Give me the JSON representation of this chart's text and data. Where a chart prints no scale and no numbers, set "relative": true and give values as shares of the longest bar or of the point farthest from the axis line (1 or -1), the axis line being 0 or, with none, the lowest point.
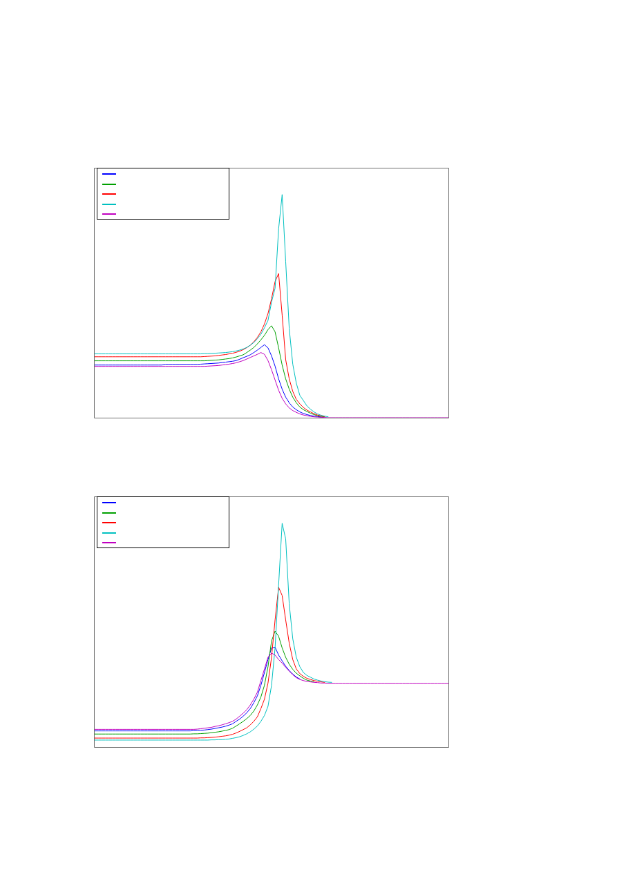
{
  "chart_data": [
    {
      "type": "line",
      "relative": true,
      "tick_labels": false,
      "categories": [
        null,
        null,
        null,
        null,
        null,
        null,
        null,
        null,
        null,
        null,
        null,
        null,
        null,
        null,
        null,
        null,
        null,
        null,
        null,
        null,
        null,
        null,
        null,
        null,
        null,
        null,
        null,
        null,
        null,
        null,
        null,
        null,
        null,
        null,
        null,
        null,
        null,
        null,
        null,
        null,
        null,
        null,
        null,
        null,
        null,
        null,
        null,
        null,
        null,
        null,
        null,
        null,
        null,
        null,
        null,
        null,
        null,
        null,
        null,
        null,
        null,
        null,
        null,
        null,
        null,
        null,
        null,
        null,
        null,
        null,
        null,
        null,
        null,
        null,
        null,
        null,
        null,
        null,
        null,
        null,
        null,
        null,
        null,
        null,
        null,
        null,
        null,
        null,
        null,
        null,
        null,
        null,
        null,
        null,
        null,
        null,
        null,
        null,
        null,
        null,
        null
      ],
      "series": [
        {
          "color": "#0000ff",
          "values": [
            0.236,
            0.236,
            0.236,
            0.236,
            0.236,
            0.236,
            0.236,
            0.236,
            0.236,
            0.236,
            0.236,
            0.236,
            0.236,
            0.236,
            0.236,
            0.236,
            0.236,
            0.236,
            0.236,
            0.236,
            0.239,
            0.239,
            0.239,
            0.239,
            0.239,
            0.239,
            0.239,
            0.239,
            0.239,
            0.239,
            0.24,
            0.241,
            0.242,
            0.243,
            0.244,
            0.245,
            0.247,
            0.249,
            0.251,
            0.253,
            0.256,
            0.262,
            0.269,
            0.275,
            0.282,
            0.292,
            0.303,
            0.315,
            0.327,
            0.313,
            0.277,
            0.231,
            0.174,
            0.128,
            0.092,
            0.067,
            0.048,
            0.036,
            0.026,
            0.019,
            0.014,
            0.01,
            0.007,
            0.005,
            0.003,
            null,
            null,
            null,
            null,
            null,
            null,
            null,
            null,
            null,
            null,
            null,
            null,
            null,
            null,
            null,
            null,
            null,
            null,
            null,
            null,
            null,
            null,
            null,
            null,
            null,
            null,
            null,
            null,
            null,
            null,
            null,
            null,
            null,
            null,
            null,
            null
          ]
        },
        {
          "color": "#00a000",
          "values": [
            0.255,
            0.255,
            0.255,
            0.255,
            0.255,
            0.255,
            0.255,
            0.255,
            0.255,
            0.255,
            0.255,
            0.255,
            0.255,
            0.255,
            0.255,
            0.255,
            0.255,
            0.255,
            0.255,
            0.255,
            0.255,
            0.255,
            0.255,
            0.255,
            0.255,
            0.255,
            0.255,
            0.255,
            0.255,
            0.255,
            0.255,
            0.255,
            0.256,
            0.257,
            0.258,
            0.259,
            0.261,
            0.263,
            0.265,
            0.268,
            0.272,
            0.277,
            0.282,
            0.292,
            0.303,
            0.315,
            0.331,
            0.349,
            0.369,
            0.395,
            0.412,
            0.385,
            0.313,
            0.236,
            0.174,
            0.128,
            0.092,
            0.067,
            0.048,
            0.036,
            0.028,
            0.02,
            0.014,
            0.009,
            0.006,
            0.004,
            null,
            null,
            null,
            null,
            null,
            null,
            null,
            null,
            null,
            null,
            null,
            null,
            null,
            null,
            null,
            null,
            null,
            null,
            null,
            null,
            null,
            null,
            null,
            null,
            null,
            null,
            null,
            null,
            null,
            null,
            null,
            null,
            null,
            null,
            null
          ]
        },
        {
          "color": "#ff0000",
          "values": [
            0.273,
            0.273,
            0.273,
            0.273,
            0.273,
            0.273,
            0.273,
            0.273,
            0.273,
            0.273,
            0.273,
            0.273,
            0.273,
            0.273,
            0.273,
            0.273,
            0.273,
            0.273,
            0.273,
            0.273,
            0.273,
            0.273,
            0.273,
            0.273,
            0.273,
            0.273,
            0.273,
            0.273,
            0.273,
            0.273,
            0.273,
            0.274,
            0.275,
            0.276,
            0.277,
            0.279,
            0.281,
            0.283,
            0.286,
            0.289,
            0.293,
            0.298,
            0.305,
            0.314,
            0.325,
            0.34,
            0.36,
            0.385,
            0.42,
            0.467,
            0.533,
            0.61,
            0.646,
            0.46,
            0.26,
            0.174,
            0.118,
            0.082,
            0.062,
            0.046,
            0.034,
            0.026,
            0.018,
            0.012,
            0.008,
            0.005,
            null,
            null,
            null,
            null,
            null,
            null,
            null,
            null,
            null,
            null,
            null,
            null,
            null,
            null,
            null,
            null,
            null,
            null,
            null,
            null,
            null,
            null,
            null,
            null,
            null,
            null,
            null,
            null,
            null,
            null,
            null,
            null,
            null,
            null,
            null
          ]
        },
        {
          "color": "#00c0c0",
          "values": [
            0.286,
            0.286,
            0.286,
            0.286,
            0.286,
            0.286,
            0.286,
            0.286,
            0.286,
            0.286,
            0.286,
            0.286,
            0.286,
            0.286,
            0.286,
            0.286,
            0.286,
            0.286,
            0.286,
            0.286,
            0.286,
            0.286,
            0.286,
            0.286,
            0.286,
            0.286,
            0.286,
            0.286,
            0.286,
            0.286,
            0.286,
            0.287,
            0.287,
            0.288,
            0.289,
            0.29,
            0.291,
            0.292,
            0.294,
            0.296,
            0.299,
            0.303,
            0.308,
            0.315,
            0.325,
            0.337,
            0.354,
            0.374,
            0.403,
            0.436,
            0.518,
            0.58,
            0.846,
            1,
            0.7,
            0.4,
            0.24,
            0.155,
            0.1,
            0.077,
            0.053,
            0.038,
            0.026,
            0.017,
            0.011,
            0.007,
            0.004,
            null,
            null,
            null,
            null,
            null,
            null,
            null,
            null,
            null,
            null,
            null,
            null,
            null,
            null,
            null,
            null,
            null,
            null,
            null,
            null,
            null,
            null,
            null,
            null,
            null,
            null,
            null,
            null,
            null,
            null,
            null,
            null,
            null,
            null
          ]
        },
        {
          "color": "#c000c0",
          "values": [
            0.23,
            0.23,
            0.23,
            0.23,
            0.23,
            0.23,
            0.23,
            0.23,
            0.23,
            0.23,
            0.23,
            0.23,
            0.23,
            0.23,
            0.23,
            0.23,
            0.23,
            0.23,
            0.23,
            0.23,
            0.23,
            0.23,
            0.23,
            0.23,
            0.23,
            0.23,
            0.23,
            0.23,
            0.23,
            0.23,
            0.23,
            0.23,
            0.231,
            0.232,
            0.233,
            0.234,
            0.236,
            0.238,
            0.24,
            0.243,
            0.246,
            0.251,
            0.256,
            0.263,
            0.27,
            0.277,
            0.284,
            0.292,
            0.284,
            0.256,
            0.215,
            0.169,
            0.123,
            0.087,
            0.062,
            0.044,
            0.032,
            0.024,
            0.017,
            0.012,
            0.009,
            0.006,
            0.004,
            0.003,
            0.002,
            0.001,
            0,
            0,
            0,
            0,
            0,
            0,
            0,
            0,
            0,
            0,
            0,
            0,
            0,
            0,
            0,
            0,
            0,
            0,
            0,
            0,
            0,
            0,
            0,
            0,
            0,
            0,
            0,
            0,
            0,
            0,
            0,
            0,
            0,
            0,
            0
          ]
        }
      ]
    },
    {
      "type": "line",
      "relative": true,
      "tick_labels": false,
      "categories": [
        null,
        null,
        null,
        null,
        null,
        null,
        null,
        null,
        null,
        null,
        null,
        null,
        null,
        null,
        null,
        null,
        null,
        null,
        null,
        null,
        null,
        null,
        null,
        null,
        null,
        null,
        null,
        null,
        null,
        null,
        null,
        null,
        null,
        null,
        null,
        null,
        null,
        null,
        null,
        null,
        null,
        null,
        null,
        null,
        null,
        null,
        null,
        null,
        null,
        null,
        null,
        null,
        null,
        null,
        null,
        null,
        null,
        null,
        null,
        null,
        null,
        null,
        null,
        null,
        null,
        null,
        null,
        null,
        null,
        null,
        null,
        null,
        null,
        null,
        null,
        null,
        null,
        null,
        null,
        null,
        null,
        null,
        null,
        null,
        null,
        null,
        null,
        null,
        null,
        null,
        null,
        null,
        null,
        null,
        null,
        null,
        null,
        null,
        null,
        null,
        null
      ],
      "series": [
        {
          "color": "#0000ff",
          "values": [
            0.072,
            0.072,
            0.072,
            0.072,
            0.072,
            0.072,
            0.072,
            0.072,
            0.072,
            0.072,
            0.072,
            0.072,
            0.072,
            0.072,
            0.072,
            0.072,
            0.072,
            0.072,
            0.072,
            0.072,
            0.072,
            0.072,
            0.072,
            0.072,
            0.072,
            0.072,
            0.072,
            0.072,
            0.073,
            0.074,
            0.075,
            0.076,
            0.078,
            0.08,
            0.083,
            0.086,
            0.089,
            0.093,
            0.098,
            0.104,
            0.115,
            0.125,
            0.138,
            0.153,
            0.172,
            0.198,
            0.229,
            0.276,
            0.333,
            0.391,
            0.443,
            0.446,
            0.411,
            0.385,
            0.361,
            0.342,
            0.326,
            0.313,
            0.304,
            null,
            null,
            null,
            null,
            null,
            null,
            null,
            null,
            null,
            null,
            null,
            null,
            null,
            null,
            null,
            null,
            null,
            null,
            null,
            null,
            null,
            null,
            null,
            null,
            null,
            null,
            null,
            null,
            null,
            null,
            null,
            null,
            null,
            null,
            null,
            null,
            null,
            null,
            null,
            null,
            null,
            null
          ]
        },
        {
          "color": "#00a000",
          "values": [
            0.058,
            0.058,
            0.058,
            0.058,
            0.058,
            0.058,
            0.058,
            0.058,
            0.058,
            0.058,
            0.058,
            0.058,
            0.058,
            0.058,
            0.058,
            0.058,
            0.058,
            0.058,
            0.058,
            0.058,
            0.058,
            0.058,
            0.058,
            0.058,
            0.058,
            0.058,
            0.058,
            0.058,
            0.059,
            0.059,
            0.06,
            0.061,
            0.062,
            0.064,
            0.066,
            0.068,
            0.071,
            0.074,
            0.078,
            0.084,
            0.094,
            0.104,
            0.115,
            0.127,
            0.141,
            0.161,
            0.188,
            0.224,
            0.276,
            0.359,
            0.474,
            0.518,
            0.495,
            0.443,
            0.401,
            0.37,
            0.347,
            0.33,
            0.318,
            0.307,
            0.299,
            0.295,
            0.292,
            null,
            null,
            null,
            null,
            null,
            null,
            null,
            null,
            null,
            null,
            null,
            null,
            null,
            null,
            null,
            null,
            null,
            null,
            null,
            null,
            null,
            null,
            null,
            null,
            null,
            null,
            null,
            null,
            null,
            null,
            null,
            null,
            null,
            null,
            null,
            null,
            null,
            null
          ]
        },
        {
          "color": "#ff0000",
          "values": [
            0.04,
            0.04,
            0.04,
            0.04,
            0.04,
            0.04,
            0.04,
            0.04,
            0.04,
            0.04,
            0.04,
            0.04,
            0.04,
            0.04,
            0.04,
            0.04,
            0.04,
            0.04,
            0.04,
            0.04,
            0.04,
            0.04,
            0.04,
            0.04,
            0.04,
            0.04,
            0.04,
            0.04,
            0.04,
            0.04,
            0.041,
            0.041,
            0.042,
            0.043,
            0.044,
            0.046,
            0.048,
            0.05,
            0.053,
            0.057,
            0.063,
            0.07,
            0.078,
            0.086,
            0.099,
            0.115,
            0.135,
            0.172,
            0.214,
            0.286,
            0.401,
            0.568,
            0.714,
            0.677,
            0.568,
            0.464,
            0.391,
            0.349,
            0.328,
            0.316,
            0.307,
            0.302,
            0.297,
            0.294,
            0.291,
            0.289,
            null,
            null,
            null,
            null,
            null,
            null,
            null,
            null,
            null,
            null,
            null,
            null,
            null,
            null,
            null,
            null,
            null,
            null,
            null,
            null,
            null,
            null,
            null,
            null,
            null,
            null,
            null,
            null,
            null,
            null,
            null,
            null,
            null,
            null,
            null
          ]
        },
        {
          "color": "#00c0c0",
          "values": [
            0.031,
            0.031,
            0.031,
            0.031,
            0.031,
            0.031,
            0.031,
            0.031,
            0.031,
            0.031,
            0.031,
            0.031,
            0.031,
            0.031,
            0.031,
            0.031,
            0.031,
            0.031,
            0.031,
            0.031,
            0.031,
            0.031,
            0.031,
            0.031,
            0.031,
            0.031,
            0.031,
            0.031,
            0.031,
            0.031,
            0.031,
            0.031,
            0.031,
            0.032,
            0.032,
            0.033,
            0.033,
            0.035,
            0.036,
            0.039,
            0.042,
            0.046,
            0.052,
            0.059,
            0.068,
            0.08,
            0.094,
            0.115,
            0.141,
            0.182,
            0.276,
            0.443,
            0.724,
            1,
            0.93,
            0.64,
            0.484,
            0.401,
            0.359,
            0.333,
            0.32,
            0.312,
            0.304,
            0.299,
            0.295,
            0.292,
            0.29,
            0.289,
            null,
            null,
            null,
            null,
            null,
            null,
            null,
            null,
            null,
            null,
            null,
            null,
            null,
            null,
            null,
            null,
            null,
            null,
            null,
            null,
            null,
            null,
            null,
            null,
            null,
            null,
            null,
            null,
            null,
            null,
            null,
            null,
            null
          ]
        },
        {
          "color": "#c000c0",
          "values": [
            0.079,
            0.079,
            0.079,
            0.079,
            0.079,
            0.079,
            0.079,
            0.079,
            0.079,
            0.079,
            0.079,
            0.079,
            0.079,
            0.079,
            0.079,
            0.079,
            0.079,
            0.079,
            0.079,
            0.079,
            0.079,
            0.079,
            0.079,
            0.079,
            0.079,
            0.079,
            0.079,
            0.079,
            0.079,
            0.08,
            0.082,
            0.084,
            0.086,
            0.088,
            0.092,
            0.095,
            0.099,
            0.104,
            0.109,
            0.115,
            0.125,
            0.138,
            0.151,
            0.167,
            0.188,
            0.214,
            0.245,
            0.297,
            0.349,
            0.401,
            0.42,
            0.411,
            0.391,
            0.375,
            0.356,
            0.339,
            0.323,
            0.31,
            0.302,
            0.297,
            0.293,
            0.291,
            0.289,
            0.288,
            0.286,
            0.286,
            0.285,
            0.285,
            0.285,
            0.285,
            0.285,
            0.285,
            0.285,
            0.285,
            0.285,
            0.285,
            0.285,
            0.285,
            0.285,
            0.285,
            0.285,
            0.285,
            0.285,
            0.285,
            0.285,
            0.285,
            0.285,
            0.285,
            0.285,
            0.285,
            0.285,
            0.285,
            0.285,
            0.285,
            0.285,
            0.285,
            0.285,
            0.285,
            0.285,
            0.285,
            0.285
          ]
        }
      ]
    }
  ]
}
